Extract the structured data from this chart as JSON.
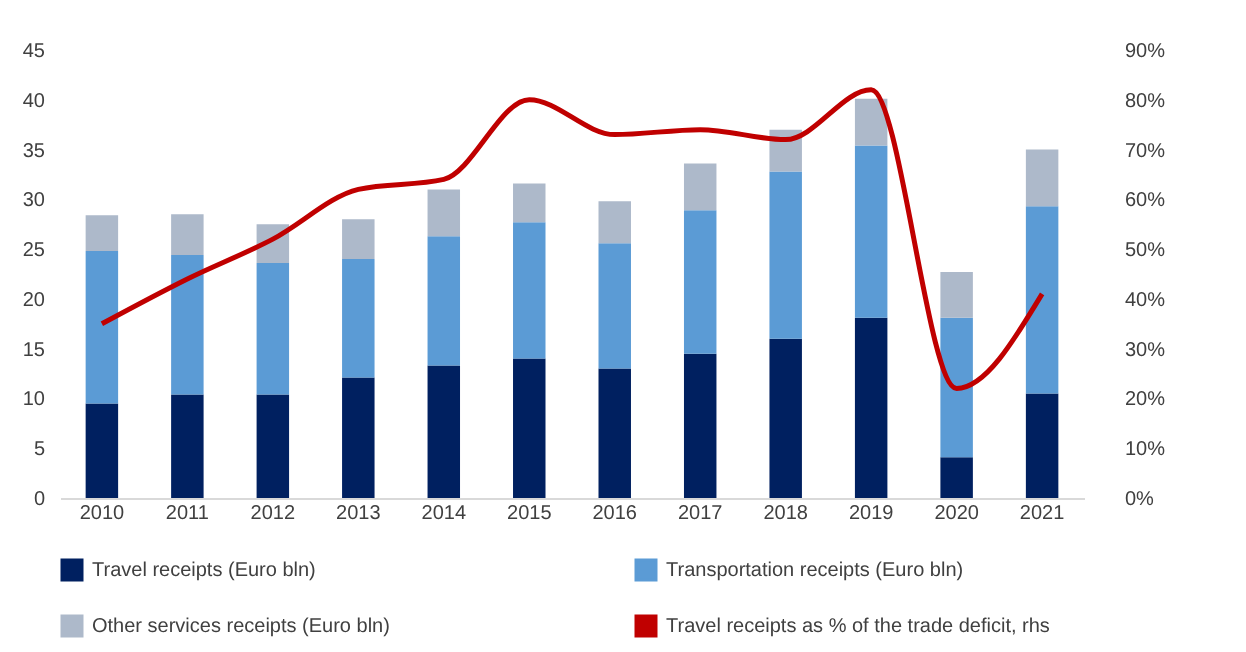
{
  "chart_data": {
    "type": "bar",
    "stacked": true,
    "categories": [
      "2010",
      "2011",
      "2012",
      "2013",
      "2014",
      "2015",
      "2016",
      "2017",
      "2018",
      "2019",
      "2020",
      "2021"
    ],
    "series": [
      {
        "name": "Travel receipts (Euro bln)",
        "color": "#002060",
        "values": [
          9.5,
          10.4,
          10.4,
          12.1,
          13.3,
          14.0,
          13.0,
          14.5,
          16.0,
          18.1,
          4.1,
          10.5
        ]
      },
      {
        "name": "Transportation receipts (Euro bln)",
        "color": "#5b9bd5",
        "values": [
          15.3,
          14.0,
          13.2,
          11.9,
          13.0,
          13.7,
          12.6,
          14.4,
          16.8,
          17.3,
          14.0,
          18.8
        ]
      },
      {
        "name": "Other services receipts (Euro bln)",
        "color": "#adb9ca",
        "values": [
          3.6,
          4.1,
          3.9,
          4.0,
          4.7,
          3.9,
          4.2,
          4.7,
          4.2,
          4.7,
          4.6,
          5.7
        ]
      },
      {
        "name": "Travel receipts as % of the trade deficit, rhs",
        "color": "#c00000",
        "type": "line",
        "axis": "y2",
        "values": [
          35,
          44,
          52,
          62,
          64,
          80,
          73,
          74,
          72,
          82,
          22,
          41
        ]
      }
    ],
    "ylim": [
      0,
      45
    ],
    "yticks": [
      0,
      5,
      10,
      15,
      20,
      25,
      30,
      35,
      40,
      45
    ],
    "y2lim": [
      0,
      90
    ],
    "y2ticks": [
      {
        "value": 0,
        "label": "0%"
      },
      {
        "value": 10,
        "label": "10%"
      },
      {
        "value": 20,
        "label": "20%"
      },
      {
        "value": 30,
        "label": "30%"
      },
      {
        "value": 40,
        "label": "40%"
      },
      {
        "value": 50,
        "label": "50%"
      },
      {
        "value": 60,
        "label": "60%"
      },
      {
        "value": 70,
        "label": "70%"
      },
      {
        "value": 80,
        "label": "80%"
      },
      {
        "value": 90,
        "label": "90%"
      }
    ],
    "grid": false,
    "legend": "bottom",
    "marker": "none",
    "line_style": "solid"
  }
}
